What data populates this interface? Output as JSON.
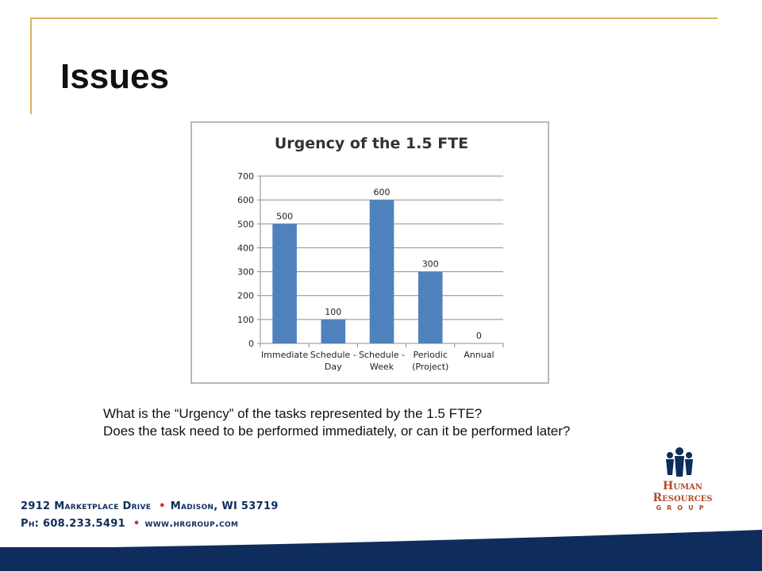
{
  "slide": {
    "title": "Issues",
    "question_line1": "What is the “Urgency” of the tasks represented by the 1.5 FTE?",
    "question_line2": "Does the task need to be performed immediately, or can it be performed later?"
  },
  "footer": {
    "street": "2912 Marketplace Drive",
    "city": "Madison, WI 53719",
    "phone": "Ph: 608.233.5491",
    "website": "www.hrgroup.com"
  },
  "logo": {
    "line1": "Human",
    "line2": "Resources",
    "line3": "GROUP"
  },
  "colors": {
    "bar": "#4f81bd",
    "accent_gold": "#d9b45a",
    "navy": "#0e2d5c",
    "logo_red": "#b24a2a"
  },
  "chart_data": {
    "type": "bar",
    "title": "Urgency of the 1.5 FTE",
    "categories": [
      [
        "Immediate"
      ],
      [
        "Schedule -",
        "Day"
      ],
      [
        "Schedule -",
        "Week"
      ],
      [
        "Periodic",
        "(Project)"
      ],
      [
        "Annual"
      ]
    ],
    "values": [
      500,
      100,
      600,
      300,
      0
    ],
    "ylim": [
      0,
      700
    ],
    "yticks": [
      0,
      100,
      200,
      300,
      400,
      500,
      600,
      700
    ],
    "grid": true,
    "legend": false,
    "data_labels": true
  }
}
